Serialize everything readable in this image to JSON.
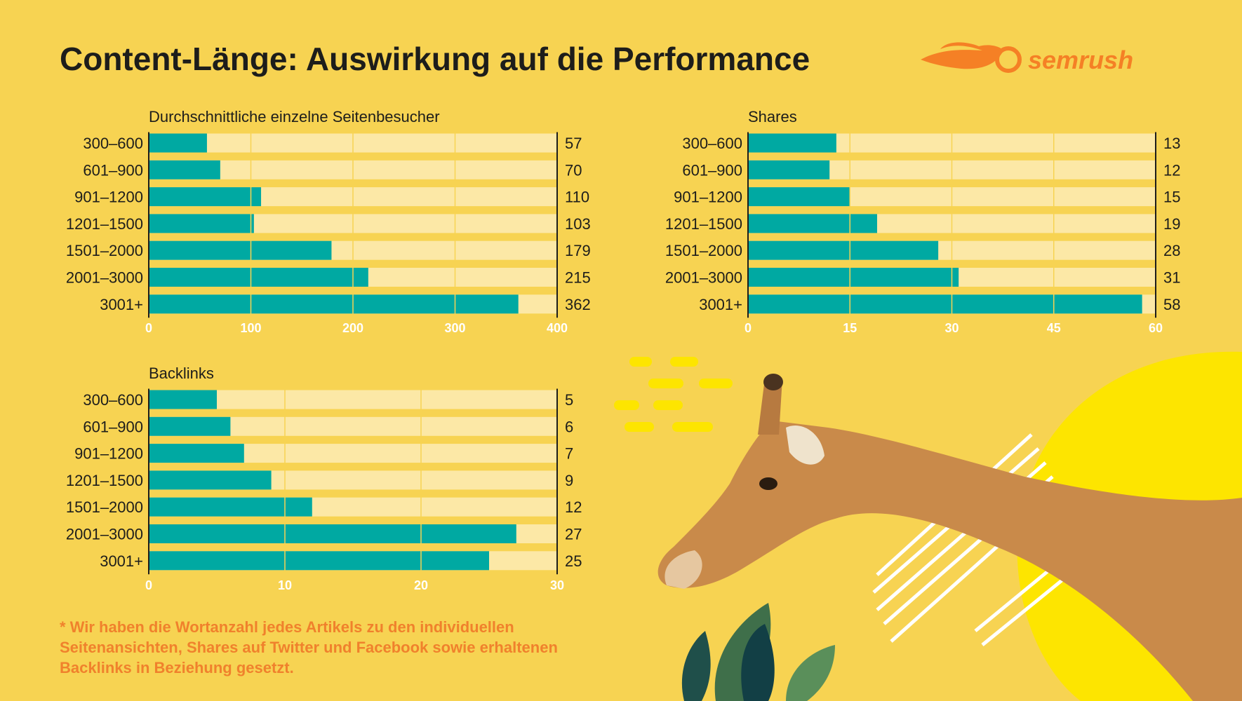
{
  "title": "Content-Länge: Auswirkung auf die Performance",
  "logo": "semrush",
  "footnote": [
    "* Wir haben die Wortanzahl jedes Artikels zu den individuellen",
    "Seitenansichten, Shares auf Twitter und Facebook sowie erhaltenen",
    "Backlinks in Beziehung gesetzt."
  ],
  "colors": {
    "background": "#f7d352",
    "bar": "#00a9a2",
    "track": "#fce8a6",
    "note": "#f0812c",
    "logo": "#f58025"
  },
  "chart_data": [
    {
      "type": "bar",
      "orientation": "horizontal",
      "title": "Durchschnittliche einzelne Seitenbesucher",
      "categories": [
        "300–600",
        "601–900",
        "901–1200",
        "1201–1500",
        "1501–2000",
        "2001–3000",
        "3001+"
      ],
      "values": [
        57,
        70,
        110,
        103,
        179,
        215,
        362
      ],
      "xlim": [
        0,
        400
      ],
      "ticks": [
        "0",
        "100",
        "200",
        "300",
        "400"
      ],
      "grid": true
    },
    {
      "type": "bar",
      "orientation": "horizontal",
      "title": "Shares",
      "categories": [
        "300–600",
        "601–900",
        "901–1200",
        "1201–1500",
        "1501–2000",
        "2001–3000",
        "3001+"
      ],
      "values": [
        13,
        12,
        15,
        19,
        28,
        31,
        58
      ],
      "xlim": [
        0,
        60
      ],
      "ticks": [
        "0",
        "15",
        "30",
        "45",
        "60"
      ],
      "grid": true
    },
    {
      "type": "bar",
      "orientation": "horizontal",
      "title": "Backlinks",
      "categories": [
        "300–600",
        "601–900",
        "901–1200",
        "1201–1500",
        "1501–2000",
        "2001–3000",
        "3001+"
      ],
      "values": [
        5,
        6,
        7,
        9,
        12,
        27,
        25
      ],
      "xlim": [
        0,
        30
      ],
      "ticks": [
        "0",
        "10",
        "20",
        "30"
      ],
      "grid": true
    }
  ]
}
